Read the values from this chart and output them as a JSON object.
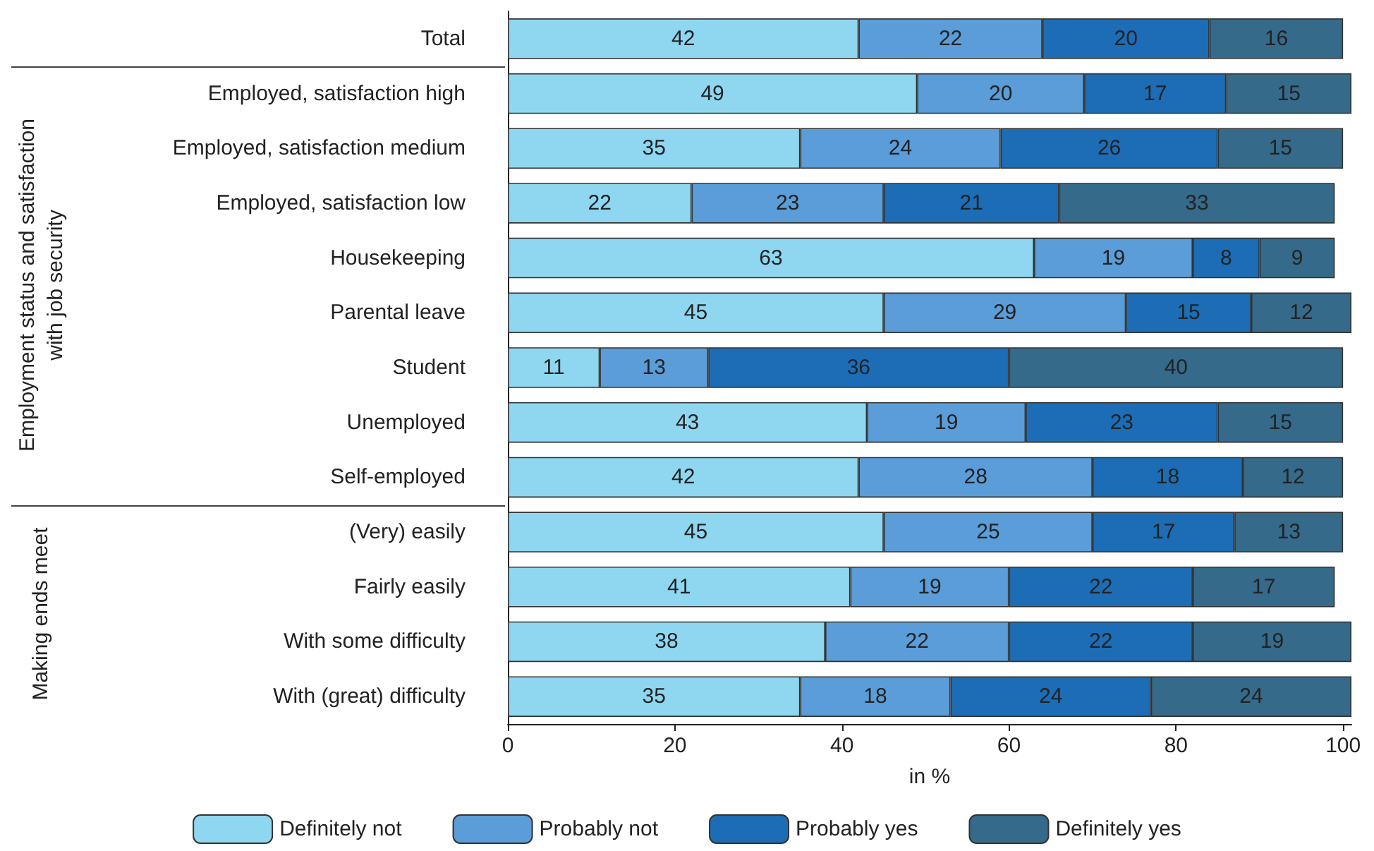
{
  "chart_data": {
    "type": "bar",
    "orientation": "horizontal",
    "stacked": true,
    "data_labels": true,
    "grid": false,
    "legend": "bottom",
    "xlabel": "in %",
    "categories": [
      "Total",
      "Employed, satisfaction high",
      "Employed, satisfaction medium",
      "Employed, satisfaction low",
      "Housekeeping",
      "Parental leave",
      "Student",
      "Unemployed",
      "Self-employed",
      "(Very) easily",
      "Fairly easily",
      "With some difficulty",
      "With (great) difficulty"
    ],
    "xlim": [
      0,
      101
    ],
    "xticks": [
      0,
      20,
      40,
      60,
      80,
      100
    ],
    "annotations": [
      "Employment status and satisfaction with job security",
      "Making ends meet"
    ],
    "series": [
      {
        "name": "Definitely not",
        "color": "#8fd7f1",
        "values": [
          42,
          49,
          35,
          22,
          63,
          45,
          11,
          43,
          42,
          45,
          41,
          38,
          35
        ]
      },
      {
        "name": "Probably not",
        "color": "#5a9dd8",
        "values": [
          22,
          20,
          24,
          23,
          19,
          29,
          13,
          19,
          28,
          25,
          19,
          22,
          18
        ]
      },
      {
        "name": "Probably yes",
        "color": "#1c6db6",
        "values": [
          20,
          17,
          26,
          21,
          8,
          15,
          36,
          23,
          18,
          17,
          22,
          22,
          24
        ]
      },
      {
        "name": "Definitely yes",
        "color": "#356a8a",
        "values": [
          16,
          15,
          15,
          33,
          9,
          12,
          40,
          15,
          12,
          13,
          17,
          19,
          24
        ]
      }
    ]
  }
}
